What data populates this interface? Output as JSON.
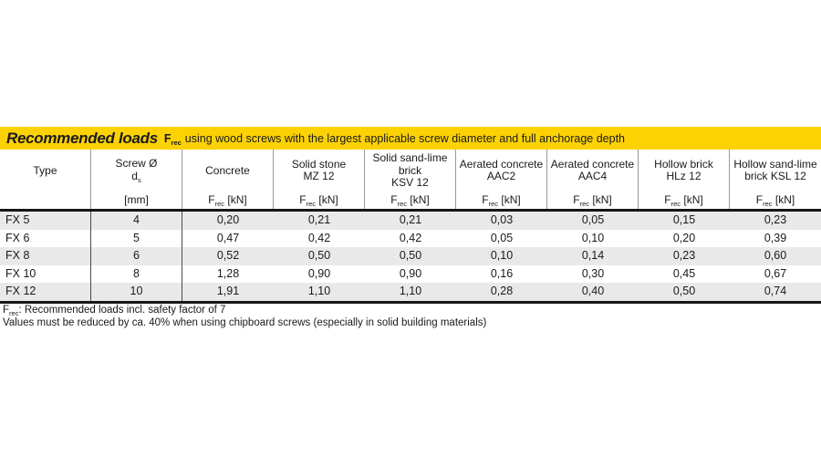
{
  "title_bar": {
    "title": "Recommended loads",
    "f_base": "F",
    "f_sub": "rec",
    "subtitle": "using wood screws with the largest applicable screw diameter and full anchorage depth"
  },
  "units": {
    "f_base": "F",
    "f_sub": "rec",
    "kn": "[kN]",
    "mm": "[mm]"
  },
  "table": {
    "columns": [
      {
        "lines": [
          "Type"
        ]
      },
      {
        "lines": [
          "Screw Ø"
        ],
        "ds_base": "d",
        "ds_sub": "s"
      },
      {
        "lines": [
          "Concrete"
        ]
      },
      {
        "lines": [
          "Solid stone",
          "MZ 12"
        ]
      },
      {
        "lines": [
          "Solid sand-lime",
          "brick",
          "KSV 12"
        ]
      },
      {
        "lines": [
          "Aerated concrete",
          "AAC2"
        ]
      },
      {
        "lines": [
          "Aerated concrete",
          "AAC4"
        ]
      },
      {
        "lines": [
          "Hollow brick",
          "HLz 12"
        ]
      },
      {
        "lines": [
          "Hollow sand-lime",
          "brick KSL 12"
        ]
      }
    ],
    "rows": [
      {
        "type": "FX 5",
        "values": [
          "4",
          "0,20",
          "0,21",
          "0,21",
          "0,03",
          "0,05",
          "0,15",
          "0,23"
        ]
      },
      {
        "type": "FX 6",
        "values": [
          "5",
          "0,47",
          "0,42",
          "0,42",
          "0,05",
          "0,10",
          "0,20",
          "0,39"
        ]
      },
      {
        "type": "FX 8",
        "values": [
          "6",
          "0,52",
          "0,50",
          "0,50",
          "0,10",
          "0,14",
          "0,23",
          "0,60"
        ]
      },
      {
        "type": "FX 10",
        "values": [
          "8",
          "1,28",
          "0,90",
          "0,90",
          "0,16",
          "0,30",
          "0,45",
          "0,67"
        ]
      },
      {
        "type": "FX 12",
        "values": [
          "10",
          "1,91",
          "1,10",
          "1,10",
          "0,28",
          "0,40",
          "0,50",
          "0,74"
        ]
      }
    ]
  },
  "footnotes": {
    "f_base": "F",
    "f_sub": "rec",
    "line1_rest": ": Recommended loads incl. safety factor of 7",
    "line2": "Values must be reduced by ca. 40% when using chipboard screws (especially in solid building materials)"
  },
  "colors": {
    "brand_yellow": "#fcd205",
    "stripe_gray": "#e9e9e9",
    "rule_black": "#161616"
  }
}
